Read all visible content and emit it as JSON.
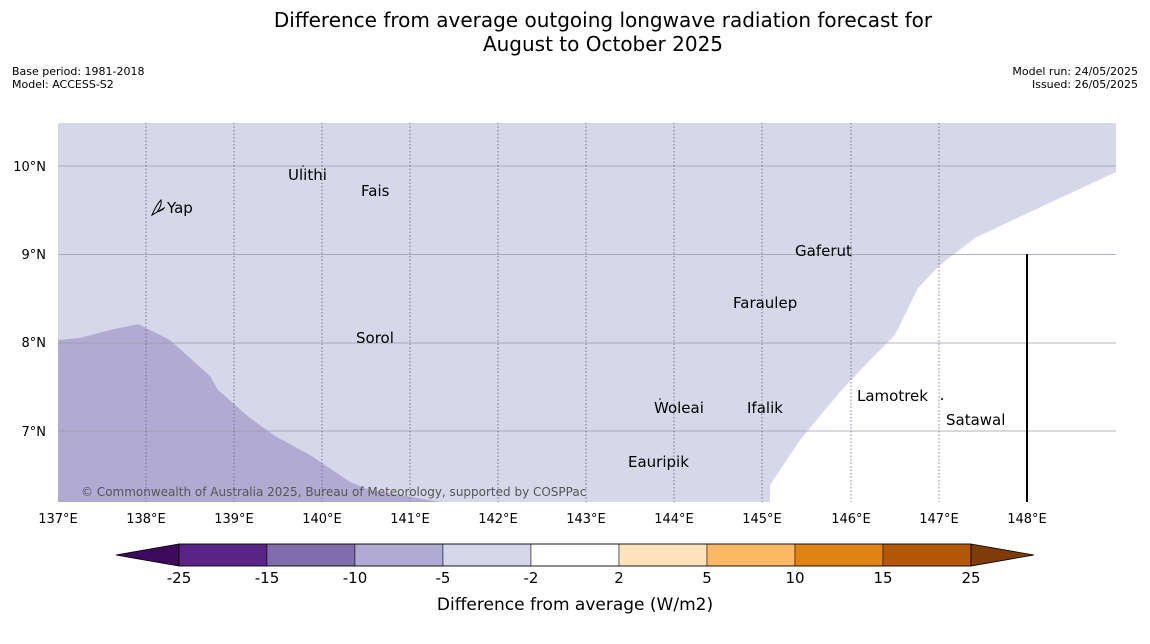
{
  "title_line1": "Difference from average outgoing longwave radiation forecast for",
  "title_line2": "August to October 2025",
  "meta": {
    "base_period": "Base period: 1981-2018",
    "model": "Model: ACCESS-S2",
    "model_run": "Model run: 24/05/2025",
    "issued": "Issued: 26/05/2025"
  },
  "map": {
    "lon_ticks": [
      "137°E",
      "138°E",
      "139°E",
      "140°E",
      "141°E",
      "142°E",
      "143°E",
      "144°E",
      "145°E",
      "146°E",
      "147°E",
      "148°E"
    ],
    "lat_ticks": [
      "10°N",
      "9°N",
      "8°N",
      "7°N"
    ],
    "places": [
      {
        "name": "Yap",
        "lon": 138.2,
        "lat": 9.5
      },
      {
        "name": "Ulithi",
        "lon": 139.7,
        "lat": 9.9
      },
      {
        "name": "Fais",
        "lon": 140.5,
        "lat": 9.75
      },
      {
        "name": "Gaferut",
        "lon": 145.4,
        "lat": 9.05
      },
      {
        "name": "Faraulep",
        "lon": 144.7,
        "lat": 8.47
      },
      {
        "name": "Sorol",
        "lon": 140.4,
        "lat": 8.07
      },
      {
        "name": "Woleai",
        "lon": 143.8,
        "lat": 7.3
      },
      {
        "name": "Ifalik",
        "lon": 144.8,
        "lat": 7.3
      },
      {
        "name": "Lamotrek",
        "lon": 146.1,
        "lat": 7.43
      },
      {
        "name": "Satawal",
        "lon": 147.1,
        "lat": 7.15
      },
      {
        "name": "Eauripik",
        "lon": 143.5,
        "lat": 6.7
      }
    ],
    "credit": "© Commonwealth of Australia 2025, Bureau of Meteorology, supported by COSPPac",
    "colors": {
      "band_neg5_neg2": "#d7d7ea",
      "band_neg10_neg5": "#b1aad2",
      "white": "#ffffff"
    }
  },
  "colorbar": {
    "tick_labels": [
      "-25",
      "-15",
      "-10",
      "-5",
      "-2",
      "2",
      "5",
      "10",
      "15",
      "25"
    ],
    "colors": [
      "#3f0a5e",
      "#5a2487",
      "#7e6eac",
      "#b1aad2",
      "#d7d7ea",
      "#ffffff",
      "#fde2bb",
      "#fdb863",
      "#e08214",
      "#b35806",
      "#7f3b08"
    ],
    "label": "Difference from average (W/m2)"
  }
}
